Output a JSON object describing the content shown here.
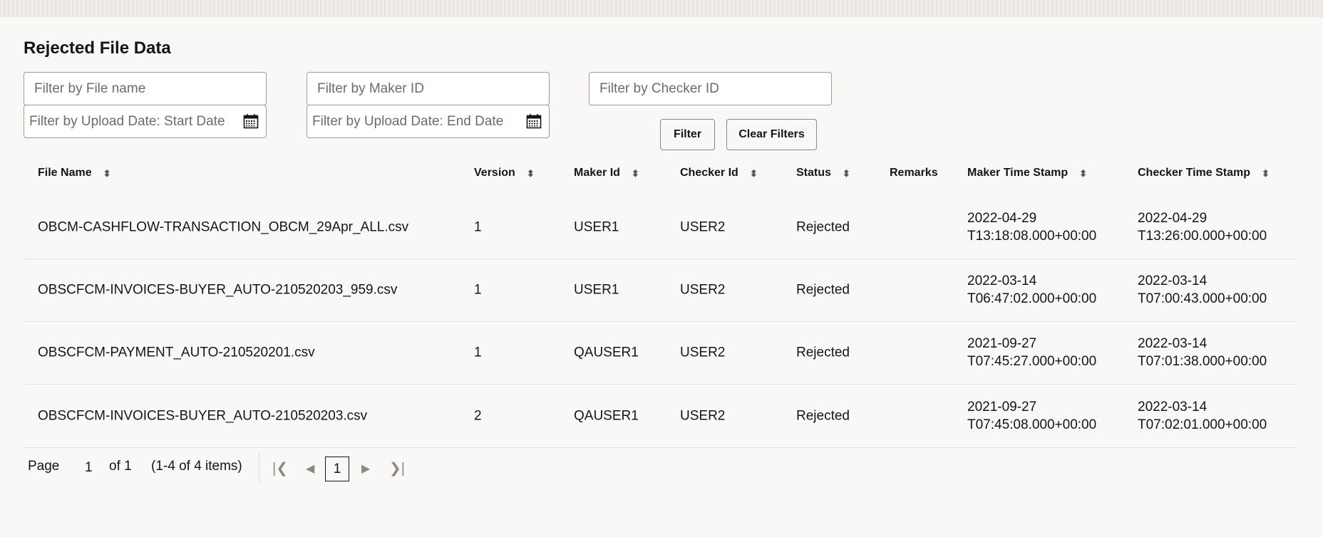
{
  "title": "Rejected File Data",
  "filters": {
    "file_name_placeholder": "Filter by File name",
    "maker_id_placeholder": "Filter by Maker ID",
    "checker_id_placeholder": "Filter by Checker ID",
    "start_date_placeholder": "Filter by Upload Date: Start Date",
    "end_date_placeholder": "Filter by Upload Date: End Date",
    "filter_label": "Filter",
    "clear_label": "Clear Filters"
  },
  "table": {
    "columns": [
      "File Name",
      "Version",
      "Maker Id",
      "Checker Id",
      "Status",
      "Remarks",
      "Maker Time Stamp",
      "Checker Time Stamp"
    ],
    "rows": [
      {
        "file": "OBCM-CASHFLOW-TRANSACTION_OBCM_29Apr_ALL.csv",
        "version": "1",
        "maker": "USER1",
        "checker": "USER2",
        "status": "Rejected",
        "remarks": "",
        "maker_ts": [
          "2022-04-29",
          "T13:18:08.000+00:00"
        ],
        "checker_ts": [
          "2022-04-29",
          "T13:26:00.000+00:00"
        ]
      },
      {
        "file": "OBSCFCM-INVOICES-BUYER_AUTO-210520203_959.csv",
        "version": "1",
        "maker": "USER1",
        "checker": "USER2",
        "status": "Rejected",
        "remarks": "",
        "maker_ts": [
          "2022-03-14",
          "T06:47:02.000+00:00"
        ],
        "checker_ts": [
          "2022-03-14",
          "T07:00:43.000+00:00"
        ]
      },
      {
        "file": "OBSCFCM-PAYMENT_AUTO-210520201.csv",
        "version": "1",
        "maker": "QAUSER1",
        "checker": "USER2",
        "status": "Rejected",
        "remarks": "",
        "maker_ts": [
          "2021-09-27",
          "T07:45:27.000+00:00"
        ],
        "checker_ts": [
          "2022-03-14",
          "T07:01:38.000+00:00"
        ]
      },
      {
        "file": "OBSCFCM-INVOICES-BUYER_AUTO-210520203.csv",
        "version": "2",
        "maker": "QAUSER1",
        "checker": "USER2",
        "status": "Rejected",
        "remarks": "",
        "maker_ts": [
          "2021-09-27",
          "T07:45:08.000+00:00"
        ],
        "checker_ts": [
          "2022-03-14",
          "T07:02:01.000+00:00"
        ]
      }
    ]
  },
  "pagination": {
    "page_label": "Page",
    "page": "1",
    "of_label": "of 1",
    "items_label": "(1-4 of 4 items)",
    "current": "1"
  }
}
